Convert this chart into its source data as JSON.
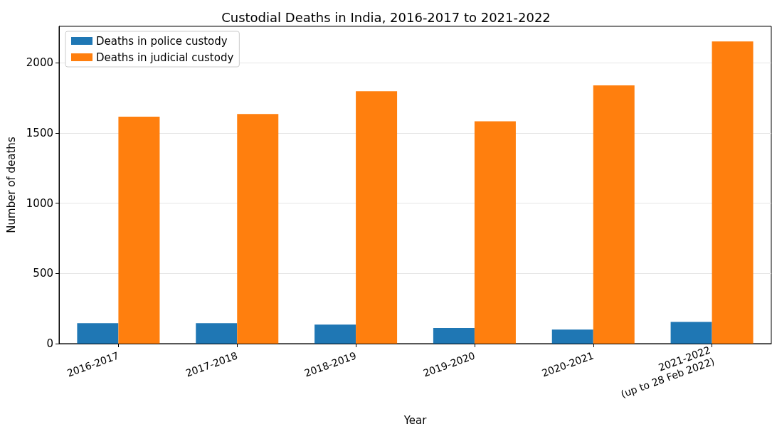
{
  "chart_data": {
    "type": "bar",
    "title": "Custodial Deaths in India, 2016-2017 to 2021-2022",
    "xlabel": "Year",
    "ylabel": "Number of deaths",
    "categories": [
      "2016-2017",
      "2017-2018",
      "2018-2019",
      "2019-2020",
      "2020-2021",
      "2021-2022\n(up to 28 Feb 2022)"
    ],
    "series": [
      {
        "name": "Deaths in police custody",
        "color": "#1f77b4",
        "values": [
          146,
          146,
          136,
          112,
          100,
          155
        ]
      },
      {
        "name": "Deaths in judicial custody",
        "color": "#ff7f0e",
        "values": [
          1616,
          1636,
          1797,
          1584,
          1840,
          2152
        ]
      }
    ],
    "ylim": [
      0,
      2260
    ],
    "yticks": [
      0,
      500,
      1000,
      1500,
      2000
    ],
    "grid": "y",
    "legend": "top left"
  }
}
